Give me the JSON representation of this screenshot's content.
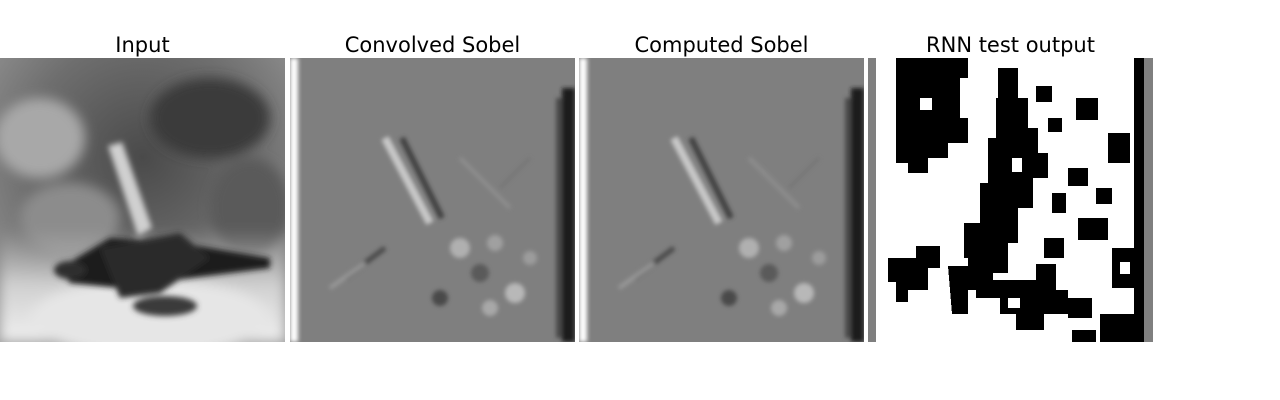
{
  "panels": [
    {
      "title": "Input"
    },
    {
      "title": "Convolved Sobel"
    },
    {
      "title": "Computed Sobel"
    },
    {
      "title": "RNN test output"
    }
  ],
  "colors": {
    "background": "#ffffff",
    "sobel_gray": "#7f7f7f",
    "binary_black": "#000000",
    "binary_white": "#ffffff"
  }
}
